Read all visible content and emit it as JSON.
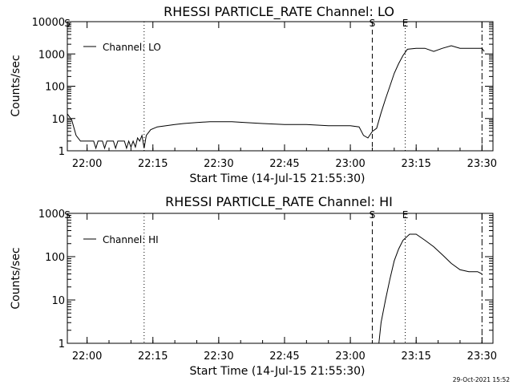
{
  "footer": {
    "timestamp": "29-Oct-2021 15:52"
  },
  "chart_data": [
    {
      "type": "line",
      "title": "RHESSI PARTICLE_RATE Channel: LO",
      "xlabel": "Start Time (14-Jul-15 21:55:30)",
      "ylabel": "Counts/sec",
      "y_scale": "log",
      "xlim": [
        "21:55:30",
        "23:32:30"
      ],
      "ylim": [
        1,
        10000
      ],
      "x_ticks": [
        "22:00",
        "22:15",
        "22:30",
        "22:45",
        "23:00",
        "23:15",
        "23:30"
      ],
      "y_ticks": [
        "1",
        "10",
        "100",
        "1000",
        "10000"
      ],
      "legend": {
        "position": "top-left",
        "entries": [
          "Channel: LO"
        ]
      },
      "markers": [
        {
          "label": "S",
          "time": "21:55:30",
          "style": "solid"
        },
        {
          "time": "22:13:00",
          "style": "dotted"
        },
        {
          "label": "S",
          "time": "23:05:00",
          "style": "dashed"
        },
        {
          "label": "E",
          "time": "23:12:30",
          "style": "dotted"
        },
        {
          "time": "23:30:00",
          "style": "dash-dot"
        }
      ],
      "series": [
        {
          "name": "Channel: LO",
          "points": [
            [
              "21:55:30",
              14
            ],
            [
              "21:56:30",
              9
            ],
            [
              "21:57:30",
              3
            ],
            [
              "21:58:30",
              2
            ],
            [
              "22:00:00",
              2
            ],
            [
              "22:01:30",
              2
            ],
            [
              "22:02:00",
              1.2
            ],
            [
              "22:02:30",
              2
            ],
            [
              "22:03:30",
              2
            ],
            [
              "22:04:00",
              1.2
            ],
            [
              "22:04:30",
              2
            ],
            [
              "22:06:00",
              2
            ],
            [
              "22:06:30",
              1.2
            ],
            [
              "22:07:00",
              2
            ],
            [
              "22:08:30",
              2
            ],
            [
              "22:09:00",
              1.2
            ],
            [
              "22:09:30",
              2
            ],
            [
              "22:10:00",
              1.3
            ],
            [
              "22:10:30",
              2
            ],
            [
              "22:11:00",
              1.3
            ],
            [
              "22:11:30",
              2.5
            ],
            [
              "22:12:00",
              2
            ],
            [
              "22:12:30",
              3
            ],
            [
              "22:13:00",
              1.2
            ],
            [
              "22:13:30",
              3
            ],
            [
              "22:14:30",
              4.5
            ],
            [
              "22:16:00",
              5.5
            ],
            [
              "22:18:00",
              6
            ],
            [
              "22:20:00",
              6.5
            ],
            [
              "22:22:00",
              7
            ],
            [
              "22:25:00",
              7.5
            ],
            [
              "22:28:00",
              8
            ],
            [
              "22:30:00",
              8
            ],
            [
              "22:33:00",
              8
            ],
            [
              "22:36:00",
              7.5
            ],
            [
              "22:40:00",
              7
            ],
            [
              "22:45:00",
              6.5
            ],
            [
              "22:50:00",
              6.5
            ],
            [
              "22:55:00",
              6
            ],
            [
              "23:00:00",
              6
            ],
            [
              "23:02:00",
              5.5
            ],
            [
              "23:03:00",
              3
            ],
            [
              "23:04:00",
              2.5
            ],
            [
              "23:05:00",
              4
            ],
            [
              "23:06:00",
              5
            ],
            [
              "23:07:00",
              15
            ],
            [
              "23:08:00",
              40
            ],
            [
              "23:09:00",
              100
            ],
            [
              "23:10:00",
              250
            ],
            [
              "23:11:00",
              500
            ],
            [
              "23:12:00",
              900
            ],
            [
              "23:13:00",
              1400
            ],
            [
              "23:15:00",
              1500
            ],
            [
              "23:17:00",
              1500
            ],
            [
              "23:19:00",
              1200
            ],
            [
              "23:21:00",
              1500
            ],
            [
              "23:23:00",
              1800
            ],
            [
              "23:25:00",
              1500
            ],
            [
              "23:28:00",
              1500
            ],
            [
              "23:30:00",
              1500
            ],
            [
              "23:30:30",
              1200
            ]
          ]
        }
      ]
    },
    {
      "type": "line",
      "title": "RHESSI PARTICLE_RATE Channel: HI",
      "xlabel": "Start Time (14-Jul-15 21:55:30)",
      "ylabel": "Counts/sec",
      "y_scale": "log",
      "xlim": [
        "21:55:30",
        "23:32:30"
      ],
      "ylim": [
        1,
        1000
      ],
      "x_ticks": [
        "22:00",
        "22:15",
        "22:30",
        "22:45",
        "23:00",
        "23:15",
        "23:30"
      ],
      "y_ticks": [
        "1",
        "10",
        "100",
        "1000"
      ],
      "legend": {
        "position": "top-left",
        "entries": [
          "Channel: HI"
        ]
      },
      "markers": [
        {
          "label": "S",
          "time": "21:55:30",
          "style": "solid"
        },
        {
          "time": "22:13:00",
          "style": "dotted"
        },
        {
          "label": "S",
          "time": "23:05:00",
          "style": "dashed"
        },
        {
          "label": "E",
          "time": "23:12:30",
          "style": "dotted"
        },
        {
          "time": "23:30:00",
          "style": "dash-dot"
        }
      ],
      "series": [
        {
          "name": "Channel: HI",
          "points": [
            [
              "23:06:30",
              1
            ],
            [
              "23:07:00",
              3
            ],
            [
              "23:08:00",
              10
            ],
            [
              "23:09:00",
              30
            ],
            [
              "23:10:00",
              80
            ],
            [
              "23:11:00",
              150
            ],
            [
              "23:12:00",
              240
            ],
            [
              "23:13:30",
              330
            ],
            [
              "23:15:00",
              330
            ],
            [
              "23:17:00",
              240
            ],
            [
              "23:19:00",
              170
            ],
            [
              "23:21:00",
              110
            ],
            [
              "23:23:00",
              70
            ],
            [
              "23:25:00",
              50
            ],
            [
              "23:27:00",
              45
            ],
            [
              "23:29:00",
              45
            ],
            [
              "23:30:00",
              40
            ]
          ]
        }
      ]
    }
  ]
}
